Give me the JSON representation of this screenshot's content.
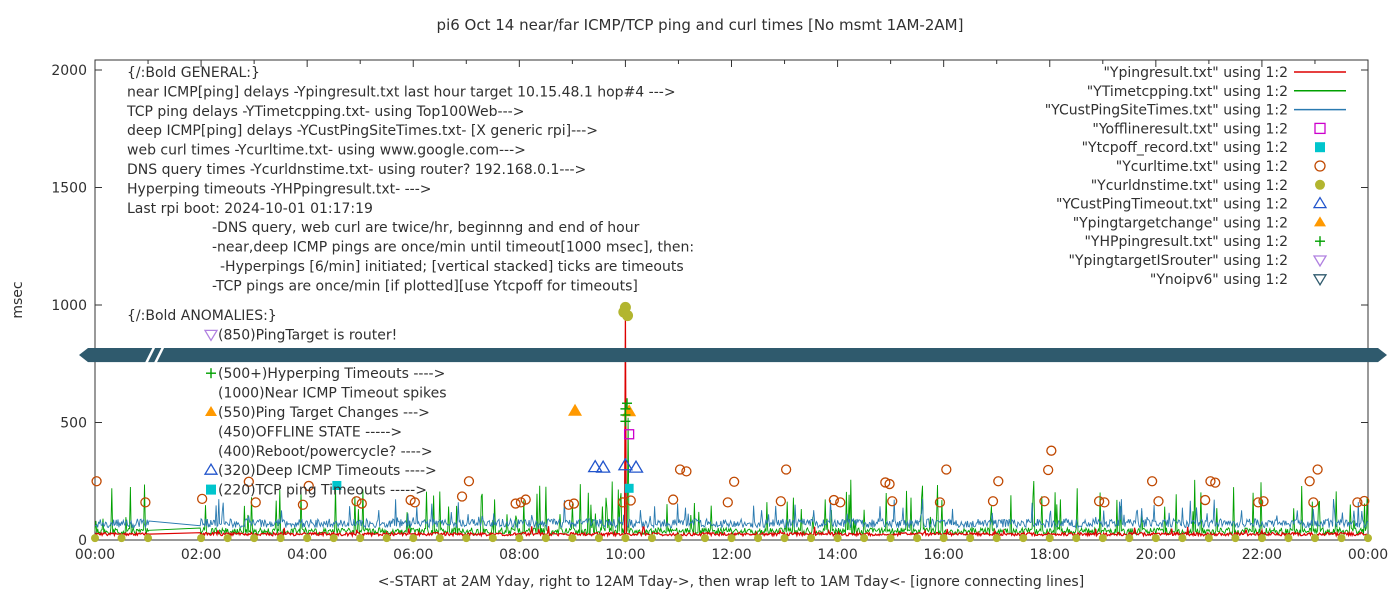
{
  "chart_data": {
    "type": "line",
    "title": "pi6 Oct 14  near/far ICMP/TCP ping and curl times [No msmt 1AM-2AM]",
    "xlabel": "<-START at 2AM Yday, right to 12AM Tday->, then wrap left to 1AM Tday<- [ignore connecting lines]",
    "ylabel": "msec",
    "xlim": [
      0,
      24
    ],
    "ylim": [
      0,
      2000
    ],
    "grid": false,
    "legend_position": "top-right-inside",
    "xticks": [
      {
        "h": 0,
        "label": "00:00"
      },
      {
        "h": 2,
        "label": "02:00"
      },
      {
        "h": 4,
        "label": "04:00"
      },
      {
        "h": 6,
        "label": "06:00"
      },
      {
        "h": 8,
        "label": "08:00"
      },
      {
        "h": 10,
        "label": "10:00"
      },
      {
        "h": 12,
        "label": "12:00"
      },
      {
        "h": 14,
        "label": "14:00"
      },
      {
        "h": 16,
        "label": "16:00"
      },
      {
        "h": 18,
        "label": "18:00"
      },
      {
        "h": 20,
        "label": "20:00"
      },
      {
        "h": 22,
        "label": "22:00"
      },
      {
        "h": 24,
        "label": "00:00"
      }
    ],
    "yticks": [
      {
        "v": 0,
        "label": "0"
      },
      {
        "v": 500,
        "label": "500"
      },
      {
        "v": 1000,
        "label": "1000"
      },
      {
        "v": 1500,
        "label": "1500"
      },
      {
        "v": 2000,
        "label": "2000"
      }
    ],
    "legend": [
      {
        "label": "\"Ypingresult.txt\" using 1:2",
        "marker": "line",
        "color": "#dd0000"
      },
      {
        "label": "\"YTimetcpping.txt\" using 1:2",
        "marker": "line",
        "color": "#00a000"
      },
      {
        "label": "\"YCustPingSiteTimes.txt\" using 1:2",
        "marker": "line",
        "color": "#2a7ab0"
      },
      {
        "label": "\"Yofflineresult.txt\" using 1:2",
        "marker": "square-open",
        "color": "#cc00cc"
      },
      {
        "label": "\"Ytcpoff_record.txt\" using 1:2",
        "marker": "square-filled",
        "color": "#00c5cc"
      },
      {
        "label": "\"Ycurltime.txt\" using 1:2",
        "marker": "circle-open",
        "color": "#c04800"
      },
      {
        "label": "\"Ycurldnstime.txt\" using 1:2",
        "marker": "circle-filled",
        "color": "#b2b52f"
      },
      {
        "label": "\"YCustPingTimeout.txt\" using 1:2",
        "marker": "triangle-open",
        "color": "#2255cc"
      },
      {
        "label": "\"Ypingtargetchange\" using 1:2",
        "marker": "triangle-filled",
        "color": "#ff9900"
      },
      {
        "label": "\"YHPpingresult.txt\" using 1:2",
        "marker": "plus",
        "color": "#00a000"
      },
      {
        "label": "\"YpingtargetISrouter\" using 1:2",
        "marker": "triangle-down-open",
        "color": "#b080e0"
      },
      {
        "label": "\"Ynoipv6\" using 1:2",
        "marker": "triangle-down-open",
        "color": "#2f5a6d"
      }
    ],
    "line_series": [
      {
        "name": "YTimetcpping",
        "color": "#00a000",
        "width": 0.9,
        "base": 22,
        "noise": 30,
        "spike_chance": 0.07,
        "spike_lo": 80,
        "spike_hi": 260,
        "seed": 13,
        "spikes": [
          [
            10.0,
            560
          ],
          [
            10.05,
            520
          ]
        ]
      },
      {
        "name": "YCustPingSiteTimes",
        "color": "#2a7ab0",
        "width": 0.9,
        "base": 52,
        "noise": 38,
        "spike_chance": 0.05,
        "spike_lo": 95,
        "spike_hi": 175,
        "seed": 29,
        "spikes": [
          [
            10.0,
            520
          ]
        ]
      },
      {
        "name": "Ypingresult",
        "color": "#dd0000",
        "width": 1.2,
        "base": 18,
        "noise": 14,
        "spike_chance": 0.012,
        "spike_lo": 38,
        "spike_hi": 60,
        "seed": 7,
        "spikes": [
          [
            10.0,
            990
          ]
        ]
      }
    ],
    "point_series": [
      {
        "name": "Ycurltime",
        "marker": "circle-open",
        "color": "#c04800",
        "size": 4.5,
        "points": [
          [
            0.03,
            250
          ],
          [
            0.95,
            160
          ],
          [
            2.02,
            175
          ],
          [
            2.9,
            248
          ],
          [
            3.03,
            160
          ],
          [
            3.92,
            150
          ],
          [
            4.03,
            230
          ],
          [
            4.93,
            165
          ],
          [
            5.03,
            155
          ],
          [
            5.95,
            170
          ],
          [
            6.03,
            160
          ],
          [
            6.92,
            185
          ],
          [
            7.05,
            250
          ],
          [
            7.93,
            155
          ],
          [
            8.03,
            160
          ],
          [
            8.12,
            172
          ],
          [
            8.93,
            150
          ],
          [
            9.03,
            155
          ],
          [
            9.95,
            160
          ],
          [
            10.1,
            168
          ],
          [
            10.9,
            172
          ],
          [
            11.03,
            300
          ],
          [
            11.15,
            292
          ],
          [
            11.93,
            160
          ],
          [
            12.05,
            248
          ],
          [
            12.93,
            165
          ],
          [
            13.03,
            300
          ],
          [
            13.93,
            170
          ],
          [
            14.05,
            160
          ],
          [
            14.9,
            245
          ],
          [
            14.98,
            238
          ],
          [
            15.03,
            165
          ],
          [
            15.93,
            160
          ],
          [
            16.05,
            300
          ],
          [
            16.93,
            165
          ],
          [
            17.03,
            250
          ],
          [
            17.9,
            165
          ],
          [
            17.97,
            298
          ],
          [
            18.03,
            380
          ],
          [
            18.93,
            165
          ],
          [
            19.03,
            160
          ],
          [
            19.93,
            250
          ],
          [
            20.05,
            165
          ],
          [
            20.93,
            170
          ],
          [
            21.03,
            250
          ],
          [
            21.12,
            244
          ],
          [
            21.93,
            160
          ],
          [
            22.03,
            165
          ],
          [
            22.9,
            250
          ],
          [
            22.97,
            160
          ],
          [
            23.05,
            300
          ],
          [
            23.8,
            160
          ],
          [
            23.93,
            166
          ]
        ]
      },
      {
        "name": "Ycurldnstime",
        "marker": "circle-filled",
        "color": "#b2b52f",
        "size": 4,
        "generated_row": {
          "from": 0,
          "to": 24,
          "step": 0.5,
          "gap_from": 1.0,
          "gap_to": 2.0,
          "y": 8
        },
        "points": [
          [
            9.97,
            970,
            5.5
          ],
          [
            10.0,
            990,
            5.5
          ],
          [
            10.04,
            955,
            5.5
          ]
        ]
      },
      {
        "name": "YCustPingTimeout",
        "marker": "triangle-open",
        "color": "#2255cc",
        "size": 5.5,
        "points": [
          [
            9.43,
            310
          ],
          [
            9.58,
            308
          ],
          [
            10.0,
            318
          ],
          [
            10.2,
            308
          ]
        ]
      },
      {
        "name": "Ypingtargetchange",
        "marker": "triangle-filled",
        "color": "#ff9900",
        "size": 6,
        "points": [
          [
            9.05,
            550
          ],
          [
            10.07,
            548
          ]
        ]
      },
      {
        "name": "YHPpingresult",
        "marker": "plus",
        "color": "#00a000",
        "size": 5,
        "points": [
          [
            10.0,
            505
          ],
          [
            10.0,
            532
          ],
          [
            10.0,
            558
          ],
          [
            10.03,
            582
          ]
        ]
      },
      {
        "name": "Yofflineresult",
        "marker": "square-open",
        "color": "#cc00cc",
        "size": 4.5,
        "points": [
          [
            10.07,
            450
          ]
        ]
      },
      {
        "name": "Ytcpoff_record",
        "marker": "square-filled",
        "color": "#00c5cc",
        "size": 4.5,
        "points": [
          [
            4.56,
            232
          ],
          [
            10.07,
            220
          ]
        ]
      }
    ],
    "band": {
      "name": "Ynoipv6",
      "y_msec": 787,
      "half_msec": 30,
      "color": "#2f5a6d",
      "break_hour": 1.05
    }
  },
  "annotations": {
    "general": {
      "lines": [
        {
          "text": "{/:Bold GENERAL:}",
          "indent": 0
        },
        {
          "text": "near ICMP[ping] delays -Ypingresult.txt last hour target 10.15.48.1 hop#4 --->",
          "indent": 0
        },
        {
          "text": "TCP ping delays -YTimetcpping.txt- using Top100Web--->",
          "indent": 0
        },
        {
          "text": "deep ICMP[ping] delays -YCustPingSiteTimes.txt- [X generic rpi]--->",
          "indent": 0
        },
        {
          "text": "web curl times -Ycurltime.txt- using www.google.com--->",
          "indent": 0
        },
        {
          "text": "DNS query times -Ycurldnstime.txt- using router? 192.168.0.1--->",
          "indent": 0
        },
        {
          "text": "Hyperping timeouts -YHPpingresult.txt- --->",
          "indent": 0
        },
        {
          "text": "Last rpi boot: 2024-10-01 01:17:19",
          "indent": 0
        },
        {
          "text": "-DNS query, web curl are twice/hr, beginnng and end of hour",
          "indent": 85
        },
        {
          "text": "-near,deep ICMP pings are once/min until timeout[1000 msec], then:",
          "indent": 85
        },
        {
          "text": "-Hyperpings [6/min] initiated; [vertical stacked] ticks are timeouts",
          "indent": 93
        },
        {
          "text": "-TCP pings are once/min [if plotted][use Ytcpoff for timeouts]",
          "indent": 85
        }
      ]
    },
    "anomalies": {
      "lines": [
        {
          "text": "{/:Bold ANOMALIES:}",
          "header": true
        },
        {
          "text": "(850)PingTarget is router!",
          "marker": "triangle-down-open",
          "marker_color": "#b080e0"
        },
        {
          "text": ""
        },
        {
          "text": "(500+)Hyperping Timeouts ---->",
          "marker": "plus",
          "marker_color": "#00a000"
        },
        {
          "text": "(1000)Near ICMP Timeout spikes"
        },
        {
          "text": "(550)Ping Target Changes --->",
          "marker": "triangle-filled",
          "marker_color": "#ff9900"
        },
        {
          "text": "(450)OFFLINE STATE ----->"
        },
        {
          "text": "(400)Reboot/powercycle? ---->"
        },
        {
          "text": "(320)Deep ICMP Timeouts ---->",
          "marker": "triangle-open",
          "marker_color": "#2255cc"
        },
        {
          "text": "(220)TCP ping Timeouts ----->",
          "marker": "square-filled",
          "marker_color": "#00c5cc"
        }
      ]
    }
  },
  "colors": {
    "axis": "#333333",
    "text": "#303030",
    "background": "#ffffff",
    "band": "#2f5a6d"
  }
}
